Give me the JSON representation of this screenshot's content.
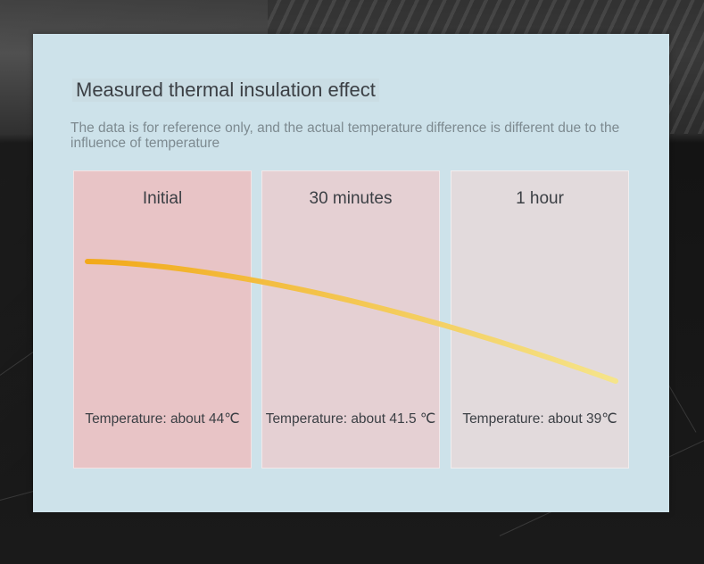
{
  "chart_data": {
    "type": "line",
    "title": "Measured thermal insulation effect",
    "subtitle": "The data is for reference only, and the actual temperature difference is different due to the influence of temperature",
    "categories": [
      "Initial",
      "30 minutes",
      "1 hour"
    ],
    "series": [
      {
        "values": [
          44,
          41.5,
          39
        ]
      }
    ],
    "value_labels": [
      "Temperature: about 44℃",
      "Temperature: about 41.5 ℃",
      "Temperature: about 39℃"
    ],
    "unit": "℃",
    "grid": false,
    "legend": "none"
  },
  "colors": {
    "card_background": "#cde2ea",
    "panel_initial": "#e8c4c6",
    "panel_30min": "#e5d0d3",
    "panel_1hour": "#e2dadc",
    "curve_start": "#f2a91a",
    "curve_end": "#f5e48a",
    "text": "#3b3f44",
    "subtitle_text": "#7d8a90"
  }
}
